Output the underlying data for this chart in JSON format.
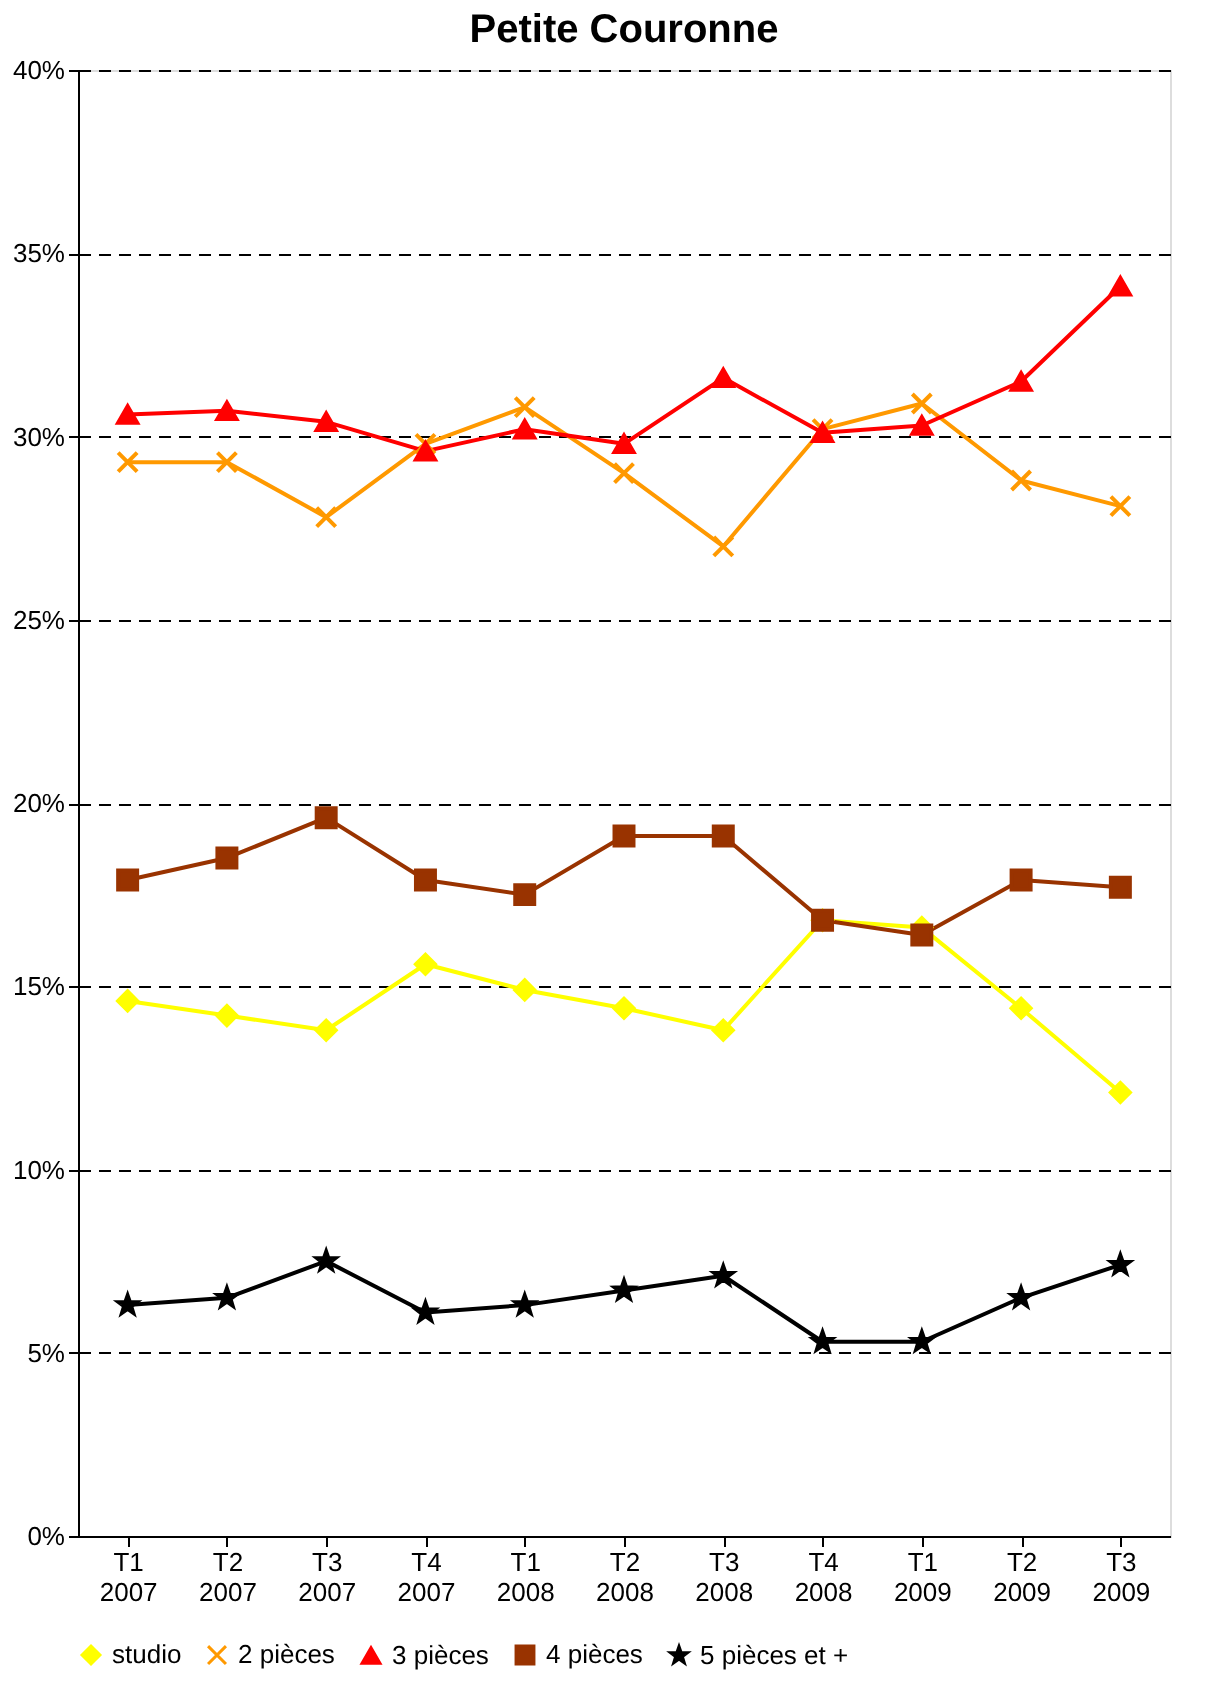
{
  "chart_data": {
    "type": "line",
    "title": "Petite Couronne",
    "categories": [
      "T1 2007",
      "T2 2007",
      "T3 2007",
      "T4 2007",
      "T1 2008",
      "T2 2008",
      "T3 2008",
      "T4 2008",
      "T1 2009",
      "T2 2009",
      "T3 2009"
    ],
    "series": [
      {
        "name": "studio",
        "color": "#ffff00",
        "marker": "diamond",
        "values": [
          14.6,
          14.2,
          13.8,
          15.6,
          14.9,
          14.4,
          13.8,
          16.8,
          16.6,
          14.4,
          12.1
        ]
      },
      {
        "name": "2 pièces",
        "color": "#ff9900",
        "marker": "cross",
        "values": [
          29.3,
          29.3,
          27.8,
          29.8,
          30.8,
          29.0,
          27.0,
          30.2,
          30.9,
          28.8,
          28.1
        ]
      },
      {
        "name": "3 pièces",
        "color": "#ff0000",
        "marker": "triangle",
        "values": [
          30.6,
          30.7,
          30.4,
          29.6,
          30.2,
          29.8,
          31.6,
          30.1,
          30.3,
          31.5,
          34.1
        ]
      },
      {
        "name": "4 pièces",
        "color": "#993300",
        "marker": "square",
        "values": [
          17.9,
          18.5,
          19.6,
          17.9,
          17.5,
          19.1,
          19.1,
          16.8,
          16.4,
          17.9,
          17.7
        ]
      },
      {
        "name": "5 pièces et +",
        "color": "#000000",
        "marker": "star",
        "values": [
          6.3,
          6.5,
          7.5,
          6.1,
          6.3,
          6.7,
          7.1,
          5.3,
          5.3,
          6.5,
          7.4
        ]
      }
    ],
    "ylim": [
      0,
      40
    ],
    "yticks": [
      {
        "value": 0,
        "label": "0%"
      },
      {
        "value": 5,
        "label": "5%"
      },
      {
        "value": 10,
        "label": "10%"
      },
      {
        "value": 15,
        "label": "15%"
      },
      {
        "value": 20,
        "label": "20%"
      },
      {
        "value": 25,
        "label": "25%"
      },
      {
        "value": 30,
        "label": "30%"
      },
      {
        "value": 35,
        "label": "35%"
      },
      {
        "value": 40,
        "label": "40%"
      }
    ],
    "grid": "y",
    "legend": "bottom",
    "line_style": "solid"
  }
}
